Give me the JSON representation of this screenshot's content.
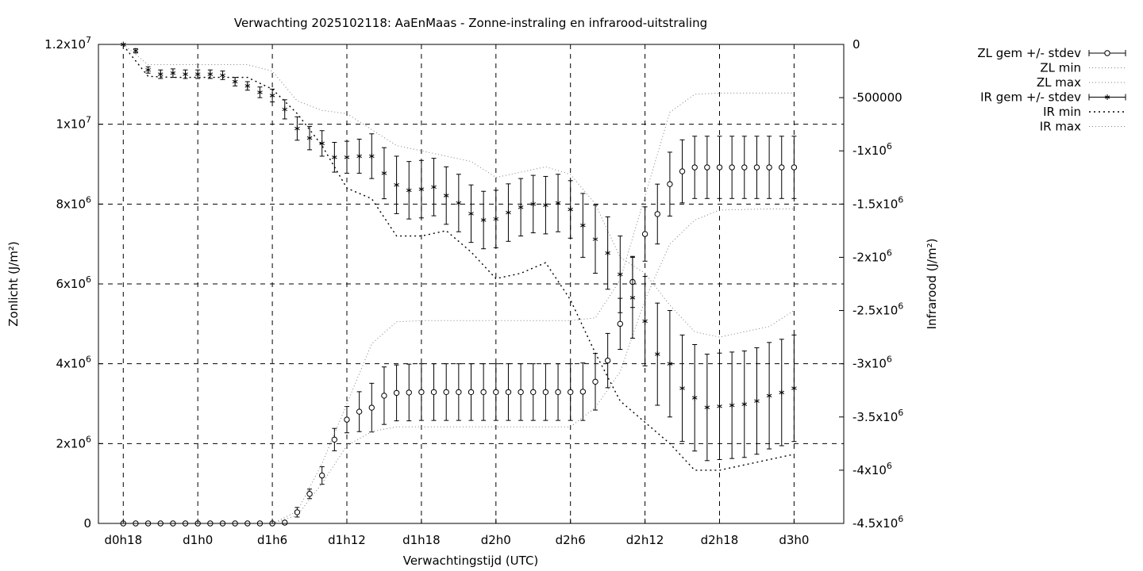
{
  "chart_data": {
    "type": "scatter",
    "title": "Verwachting 2025102118: AaEnMaas - Zonne-instraling en infrarood-uitstraling",
    "xlabel": "Verwachtingstijd (UTC)",
    "ylabel_left": "Zonlicht (J/m²)",
    "ylabel_right": "Infrarood (J/m²)",
    "x_unit": "hours since d0h18",
    "xlim": [
      -2,
      58
    ],
    "ylim_left": [
      0,
      12000000
    ],
    "ylim_right": [
      -4500000,
      0
    ],
    "grid": true,
    "legend_position": "outside-right",
    "x_ticks": [
      {
        "value": 0,
        "label": "d0h18"
      },
      {
        "value": 6,
        "label": "d1h0"
      },
      {
        "value": 12,
        "label": "d1h6"
      },
      {
        "value": 18,
        "label": "d1h12"
      },
      {
        "value": 24,
        "label": "d1h18"
      },
      {
        "value": 30,
        "label": "d2h0"
      },
      {
        "value": 36,
        "label": "d2h6"
      },
      {
        "value": 42,
        "label": "d2h12"
      },
      {
        "value": 48,
        "label": "d2h18"
      },
      {
        "value": 54,
        "label": "d3h0"
      }
    ],
    "y_ticks_left": [
      {
        "value": 0,
        "mant": "0",
        "exp": ""
      },
      {
        "value": 2000000,
        "mant": "2x10",
        "exp": "6"
      },
      {
        "value": 4000000,
        "mant": "4x10",
        "exp": "6"
      },
      {
        "value": 6000000,
        "mant": "6x10",
        "exp": "6"
      },
      {
        "value": 8000000,
        "mant": "8x10",
        "exp": "6"
      },
      {
        "value": 10000000,
        "mant": "1x10",
        "exp": "7"
      },
      {
        "value": 12000000,
        "mant": "1.2x10",
        "exp": "7"
      }
    ],
    "y_ticks_right": [
      {
        "value": 0,
        "mant": "0",
        "exp": ""
      },
      {
        "value": -500000,
        "mant": "-500000",
        "exp": ""
      },
      {
        "value": -1000000,
        "mant": "-1x10",
        "exp": "6"
      },
      {
        "value": -1500000,
        "mant": "-1.5x10",
        "exp": "6"
      },
      {
        "value": -2000000,
        "mant": "-2x10",
        "exp": "6"
      },
      {
        "value": -2500000,
        "mant": "-2.5x10",
        "exp": "6"
      },
      {
        "value": -3000000,
        "mant": "-3x10",
        "exp": "6"
      },
      {
        "value": -3500000,
        "mant": "-3.5x10",
        "exp": "6"
      },
      {
        "value": -4000000,
        "mant": "-4x10",
        "exp": "6"
      },
      {
        "value": -4500000,
        "mant": "-4.5x10",
        "exp": "6"
      }
    ],
    "x": [
      0,
      1,
      2,
      3,
      4,
      5,
      6,
      7,
      8,
      9,
      10,
      11,
      12,
      13,
      14,
      15,
      16,
      17,
      18,
      19,
      20,
      21,
      22,
      23,
      24,
      25,
      26,
      27,
      28,
      29,
      30,
      31,
      32,
      33,
      34,
      35,
      36,
      37,
      38,
      39,
      40,
      41,
      42,
      43,
      44,
      45,
      46,
      47,
      48,
      49,
      50,
      51,
      52,
      53,
      54
    ],
    "series": [
      {
        "name": "ZL gem +/- stdev",
        "axis": "left",
        "marker": "circle",
        "values": [
          0,
          0,
          0,
          0,
          0,
          0,
          0,
          0,
          0,
          0,
          0,
          0,
          0,
          20000,
          280000,
          740000,
          1200000,
          2100000,
          2600000,
          2800000,
          2900000,
          3200000,
          3270000,
          3280000,
          3290000,
          3290000,
          3290000,
          3290000,
          3290000,
          3290000,
          3290000,
          3290000,
          3290000,
          3290000,
          3290000,
          3290000,
          3290000,
          3300000,
          3550000,
          4080000,
          5000000,
          6050000,
          7250000,
          7750000,
          8500000,
          8820000,
          8920000,
          8920000,
          8920000,
          8920000,
          8920000,
          8920000,
          8920000,
          8920000,
          8920000
        ],
        "stdev": [
          0,
          0,
          0,
          0,
          0,
          0,
          0,
          0,
          0,
          0,
          0,
          0,
          0,
          40000,
          120000,
          120000,
          220000,
          280000,
          330000,
          500000,
          610000,
          720000,
          700000,
          710000,
          710000,
          710000,
          710000,
          710000,
          710000,
          710000,
          710000,
          710000,
          710000,
          710000,
          710000,
          710000,
          710000,
          720000,
          710000,
          680000,
          640000,
          640000,
          680000,
          750000,
          800000,
          790000,
          780000,
          780000,
          780000,
          780000,
          780000,
          780000,
          780000,
          780000,
          780000
        ]
      },
      {
        "name": "ZL min",
        "axis": "left",
        "style": "dotted",
        "x": [
          12,
          14,
          16,
          18,
          20,
          22,
          24,
          26,
          30,
          36,
          38,
          40,
          42,
          44,
          46,
          48,
          52,
          54
        ],
        "values": [
          0,
          200000,
          1000000,
          1950000,
          2300000,
          2420000,
          2420000,
          2420000,
          2420000,
          2420000,
          2900000,
          3800000,
          5600000,
          7000000,
          7600000,
          7850000,
          7880000,
          7880000
        ]
      },
      {
        "name": "ZL max",
        "axis": "left",
        "style": "dotted",
        "x": [
          12,
          14,
          16,
          18,
          20,
          22,
          24,
          26,
          30,
          36,
          38,
          40,
          42,
          44,
          46,
          48,
          52,
          54
        ],
        "values": [
          0,
          300000,
          1500000,
          3000000,
          4500000,
          5050000,
          5080000,
          5080000,
          5080000,
          5080000,
          5150000,
          6100000,
          8200000,
          10300000,
          10750000,
          10780000,
          10780000,
          10780000
        ]
      },
      {
        "name": "IR gem +/- stdev",
        "axis": "right",
        "marker": "asterisk",
        "values": [
          0,
          -60000,
          -240000,
          -280000,
          -270000,
          -280000,
          -280000,
          -280000,
          -290000,
          -350000,
          -390000,
          -450000,
          -480000,
          -610000,
          -790000,
          -880000,
          -930000,
          -1060000,
          -1060000,
          -1050000,
          -1050000,
          -1210000,
          -1320000,
          -1370000,
          -1360000,
          -1340000,
          -1420000,
          -1490000,
          -1590000,
          -1650000,
          -1640000,
          -1580000,
          -1530000,
          -1500000,
          -1510000,
          -1490000,
          -1550000,
          -1700000,
          -1830000,
          -1960000,
          -2160000,
          -2380000,
          -2600000,
          -2910000,
          -3000000,
          -3230000,
          -3320000,
          -3410000,
          -3400000,
          -3390000,
          -3380000,
          -3350000,
          -3300000,
          -3270000,
          -3230000
        ],
        "stdev": [
          0,
          20000,
          30000,
          40000,
          40000,
          40000,
          40000,
          40000,
          40000,
          40000,
          40000,
          50000,
          60000,
          90000,
          110000,
          110000,
          120000,
          140000,
          150000,
          160000,
          210000,
          240000,
          270000,
          270000,
          270000,
          270000,
          270000,
          270000,
          270000,
          270000,
          270000,
          270000,
          270000,
          270000,
          270000,
          270000,
          270000,
          300000,
          320000,
          340000,
          360000,
          380000,
          420000,
          480000,
          500000,
          500000,
          500000,
          500000,
          500000,
          500000,
          500000,
          500000,
          500000,
          500000,
          500000
        ]
      },
      {
        "name": "IR min",
        "axis": "right",
        "style": "dotted",
        "x": [
          0,
          2,
          4,
          6,
          8,
          10,
          12,
          14,
          16,
          18,
          20,
          22,
          24,
          26,
          28,
          30,
          32,
          34,
          36,
          38,
          40,
          42,
          44,
          46,
          48,
          50,
          52,
          54
        ],
        "values": [
          -10000,
          -300000,
          -310000,
          -310000,
          -310000,
          -310000,
          -420000,
          -650000,
          -950000,
          -1350000,
          -1450000,
          -1800000,
          -1800000,
          -1750000,
          -1950000,
          -2200000,
          -2150000,
          -2050000,
          -2400000,
          -2900000,
          -3350000,
          -3550000,
          -3750000,
          -4000000,
          -4000000,
          -3950000,
          -3900000,
          -3850000
        ]
      },
      {
        "name": "IR max",
        "axis": "right",
        "style": "dotted",
        "x": [
          0,
          2,
          4,
          6,
          8,
          10,
          12,
          14,
          16,
          18,
          20,
          22,
          24,
          26,
          28,
          30,
          32,
          34,
          36,
          38,
          40,
          42,
          44,
          46,
          48,
          50,
          52,
          54
        ],
        "values": [
          0,
          -190000,
          -190000,
          -190000,
          -190000,
          -190000,
          -250000,
          -530000,
          -620000,
          -650000,
          -800000,
          -950000,
          -1000000,
          -1050000,
          -1100000,
          -1250000,
          -1200000,
          -1150000,
          -1220000,
          -1500000,
          -2000000,
          -2150000,
          -2450000,
          -2700000,
          -2750000,
          -2700000,
          -2650000,
          -2500000
        ]
      }
    ]
  },
  "legend": {
    "items": [
      {
        "label": "ZL gem +/- stdev",
        "style": "errorbar-circle"
      },
      {
        "label": "ZL min",
        "style": "dotted"
      },
      {
        "label": "ZL max",
        "style": "dotted"
      },
      {
        "label": "IR gem +/- stdev",
        "style": "errorbar-asterisk"
      },
      {
        "label": "IR min",
        "style": "dotted-sparse"
      },
      {
        "label": "IR max",
        "style": "dotted"
      }
    ]
  },
  "colors": {
    "data": "#000000",
    "minmax_lines": "#808080",
    "grid": "#000000",
    "background": "#ffffff"
  }
}
